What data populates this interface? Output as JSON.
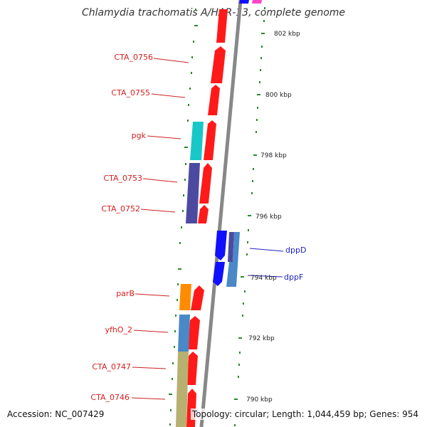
{
  "title": "Chlamydia trachomatis A/HAR-13, complete genome",
  "footer": {
    "accession": "Accession: NC_007429",
    "summary": "Topology: circular; Length: 1,044,459 bp; Genes: 954"
  },
  "colors": {
    "forward_gene": "#ff1a1a",
    "reverse_gene": "#1010ff",
    "backbone": "#888888",
    "tick": "#2a8a2a",
    "label_left": "#d42020",
    "label_right": "#2020c0",
    "cyan_gene": "#18c8c8",
    "purple_gene": "#4c4aa0",
    "orange_gene": "#ff8c00",
    "steel_gene": "#4a88c8",
    "olive_gene": "#b8b070",
    "magenta_gene": "#ff44cc"
  },
  "bp_labels": [
    "802 kbp",
    "800 kbp",
    "798 kbp",
    "796 kbp",
    "794 kbp",
    "792 kbp",
    "790 kbp"
  ],
  "gene_labels_left": [
    "CTA_0756",
    "CTA_0755",
    "pgk",
    "CTA_0753",
    "CTA_0752",
    "parB",
    "yfhO_2",
    "CTA_0747",
    "CTA_0746"
  ],
  "gene_labels_right": [
    "dppD",
    "dppF"
  ]
}
